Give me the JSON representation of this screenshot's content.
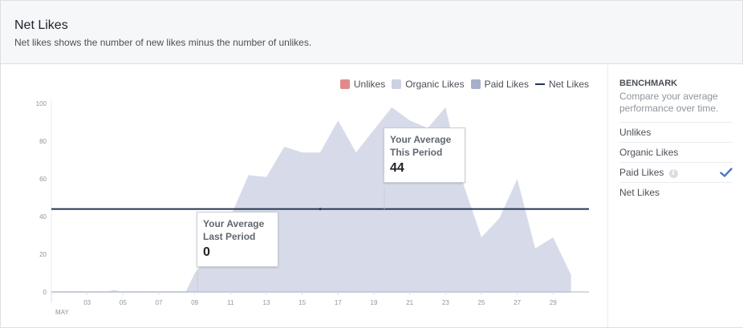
{
  "header": {
    "title": "Net Likes",
    "subtitle": "Net likes shows the number of new likes minus the number of unlikes."
  },
  "legend": [
    {
      "label": "Unlikes",
      "color": "#e08b8b",
      "kind": "box"
    },
    {
      "label": "Organic Likes",
      "color": "#ccd2e3",
      "kind": "box"
    },
    {
      "label": "Paid Likes",
      "color": "#a5b1cc",
      "kind": "box"
    },
    {
      "label": "Net Likes",
      "color": "#253653",
      "kind": "line"
    }
  ],
  "callouts": {
    "this_period": {
      "label_line1": "Your Average",
      "label_line2": "This Period",
      "value": "44"
    },
    "last_period": {
      "label_line1": "Your Average",
      "label_line2": "Last Period",
      "value": "0"
    }
  },
  "sidebar": {
    "title": "BENCHMARK",
    "description": "Compare your average performance over time.",
    "items": [
      {
        "label": "Unlikes",
        "info": false,
        "checked": false
      },
      {
        "label": "Organic Likes",
        "info": false,
        "checked": false
      },
      {
        "label": "Paid Likes",
        "info": true,
        "checked": true
      },
      {
        "label": "Net Likes",
        "info": false,
        "checked": false
      }
    ],
    "info_glyph": "i"
  },
  "chart_data": {
    "type": "area",
    "title": "",
    "xlabel": "",
    "ylabel": "",
    "ylim": [
      0,
      100
    ],
    "y_ticks": [
      0,
      20,
      40,
      60,
      80,
      100
    ],
    "x_ticks": [
      "03",
      "05",
      "07",
      "09",
      "11",
      "13",
      "15",
      "17",
      "19",
      "21",
      "23",
      "25",
      "27",
      "29"
    ],
    "x_tick_days": [
      3,
      5,
      7,
      9,
      11,
      13,
      15,
      17,
      19,
      21,
      23,
      25,
      27,
      29
    ],
    "month_label": "MAY",
    "x_domain": [
      1,
      31
    ],
    "benchmark_line": 44,
    "benchmark_color": "#253653",
    "series": [
      {
        "name": "Organic Likes",
        "color": "#d7dbe9",
        "x": [
          1,
          2,
          3,
          4,
          4.5,
          5,
          6,
          7,
          8,
          8.5,
          9,
          10,
          11,
          12,
          13,
          14,
          15,
          16,
          17,
          18,
          19,
          20,
          21,
          22,
          23,
          24,
          25,
          26,
          27,
          28,
          29,
          30
        ],
        "values": [
          0,
          0,
          0,
          0,
          1,
          0,
          0,
          0,
          0,
          0,
          10,
          22,
          40,
          62,
          61,
          77,
          74,
          74,
          91,
          74,
          86,
          98,
          91,
          87,
          98,
          57,
          29,
          39,
          60,
          23,
          29,
          9
        ]
      },
      {
        "name": "Net Likes",
        "color": "#c5cbdb",
        "x": [
          1,
          30
        ],
        "values": [
          0,
          0
        ]
      }
    ]
  }
}
